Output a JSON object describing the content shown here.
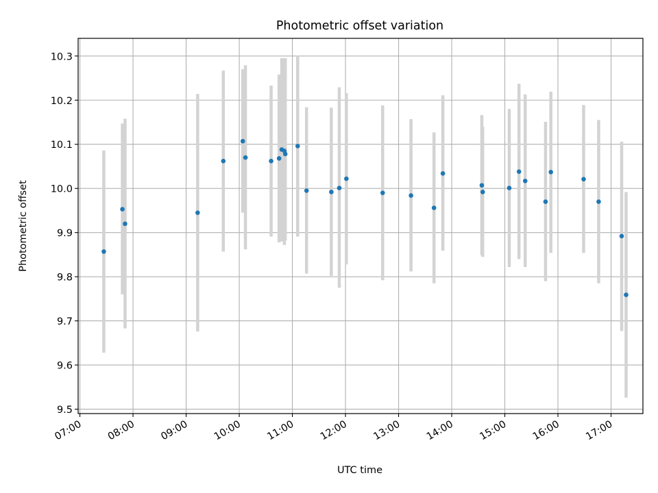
{
  "chart_data": {
    "type": "scatter",
    "title": "Photometric offset variation",
    "xlabel": "UTC time",
    "ylabel": "Photometric offset",
    "xlim": [
      "06:58",
      "17:36"
    ],
    "ylim": [
      9.49,
      10.34
    ],
    "xticks": [
      "07:00",
      "08:00",
      "09:00",
      "10:00",
      "11:00",
      "12:00",
      "13:00",
      "14:00",
      "15:00",
      "16:00",
      "17:00"
    ],
    "yticks": [
      "9.5",
      "9.6",
      "9.7",
      "9.8",
      "9.9",
      "10.0",
      "10.1",
      "10.2",
      "10.3"
    ],
    "grid": true,
    "error_bars": "vertical, light gray",
    "marker_color": "#1f77b4",
    "errorbar_color": "#d3d3d3",
    "points": [
      {
        "time": "07:27",
        "value": 9.857,
        "err_low": 9.628,
        "err_high": 10.086
      },
      {
        "time": "07:48",
        "value": 9.953,
        "err_low": 9.76,
        "err_high": 10.147
      },
      {
        "time": "07:51",
        "value": 9.92,
        "err_low": 9.683,
        "err_high": 10.158
      },
      {
        "time": "09:13",
        "value": 9.945,
        "err_low": 9.676,
        "err_high": 10.214
      },
      {
        "time": "09:42",
        "value": 10.062,
        "err_low": 9.857,
        "err_high": 10.267
      },
      {
        "time": "10:04",
        "value": 10.107,
        "err_low": 9.945,
        "err_high": 10.27
      },
      {
        "time": "10:07",
        "value": 10.07,
        "err_low": 9.862,
        "err_high": 10.279
      },
      {
        "time": "10:36",
        "value": 10.062,
        "err_low": 9.891,
        "err_high": 10.233
      },
      {
        "time": "10:45",
        "value": 10.068,
        "err_low": 9.878,
        "err_high": 10.258
      },
      {
        "time": "10:48",
        "value": 10.088,
        "err_low": 9.88,
        "err_high": 10.295
      },
      {
        "time": "10:51",
        "value": 10.085,
        "err_low": 9.872,
        "err_high": 10.295
      },
      {
        "time": "10:52",
        "value": 10.078,
        "err_low": 9.882,
        "err_high": 10.295
      },
      {
        "time": "11:06",
        "value": 10.096,
        "err_low": 9.891,
        "err_high": 10.3
      },
      {
        "time": "11:16",
        "value": 9.995,
        "err_low": 9.807,
        "err_high": 10.184
      },
      {
        "time": "11:44",
        "value": 9.992,
        "err_low": 9.802,
        "err_high": 10.183
      },
      {
        "time": "11:53",
        "value": 10.001,
        "err_low": 9.775,
        "err_high": 10.229
      },
      {
        "time": "12:01",
        "value": 10.022,
        "err_low": 9.828,
        "err_high": 10.216
      },
      {
        "time": "12:42",
        "value": 9.99,
        "err_low": 9.792,
        "err_high": 10.188
      },
      {
        "time": "13:14",
        "value": 9.984,
        "err_low": 9.812,
        "err_high": 10.157
      },
      {
        "time": "13:40",
        "value": 9.956,
        "err_low": 9.785,
        "err_high": 10.127
      },
      {
        "time": "13:50",
        "value": 10.034,
        "err_low": 9.859,
        "err_high": 10.211
      },
      {
        "time": "14:34",
        "value": 10.007,
        "err_low": 9.849,
        "err_high": 10.166
      },
      {
        "time": "14:35",
        "value": 9.992,
        "err_low": 9.845,
        "err_high": 10.14
      },
      {
        "time": "15:05",
        "value": 10.001,
        "err_low": 9.822,
        "err_high": 10.18
      },
      {
        "time": "15:16",
        "value": 10.038,
        "err_low": 9.84,
        "err_high": 10.237
      },
      {
        "time": "15:23",
        "value": 10.017,
        "err_low": 9.822,
        "err_high": 10.213
      },
      {
        "time": "15:46",
        "value": 9.97,
        "err_low": 9.79,
        "err_high": 10.151
      },
      {
        "time": "15:52",
        "value": 10.037,
        "err_low": 9.854,
        "err_high": 10.219
      },
      {
        "time": "16:29",
        "value": 10.021,
        "err_low": 9.854,
        "err_high": 10.189
      },
      {
        "time": "16:46",
        "value": 9.97,
        "err_low": 9.785,
        "err_high": 10.155
      },
      {
        "time": "17:12",
        "value": 9.892,
        "err_low": 9.677,
        "err_high": 10.106
      },
      {
        "time": "17:17",
        "value": 9.759,
        "err_low": 9.526,
        "err_high": 9.992
      }
    ]
  }
}
